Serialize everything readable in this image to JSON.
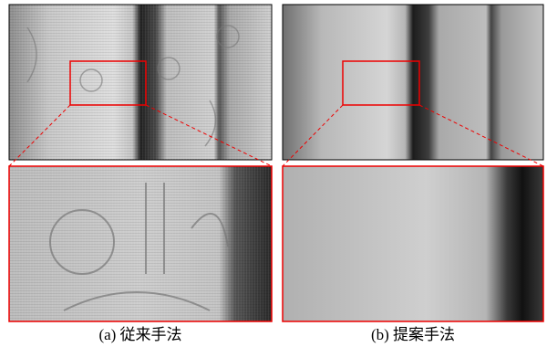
{
  "figure": {
    "panels": [
      {
        "caption": "(a) 従来手法"
      },
      {
        "caption": "(b) 提案手法"
      }
    ]
  }
}
